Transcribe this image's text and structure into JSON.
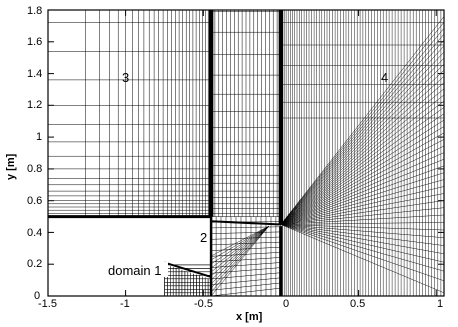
{
  "x_axis": {
    "label": "x [m]",
    "range": [
      -1.5,
      1.05
    ],
    "ticks": [
      "-1.5",
      "-1",
      "-0.5",
      "0",
      "0.5",
      "1"
    ]
  },
  "y_axis": {
    "label": "y [m]",
    "range": [
      0,
      1.8
    ],
    "ticks": [
      "0",
      "0.2",
      "0.4",
      "0.6",
      "0.8",
      "1",
      "1.2",
      "1.4",
      "1.6",
      "1.8"
    ]
  },
  "regions": {
    "domain_1": "domain 1",
    "domain_2": "2",
    "domain_3": "3",
    "domain_4": "4"
  },
  "colors": {
    "grid": "#000000",
    "background": "#ffffff"
  }
}
